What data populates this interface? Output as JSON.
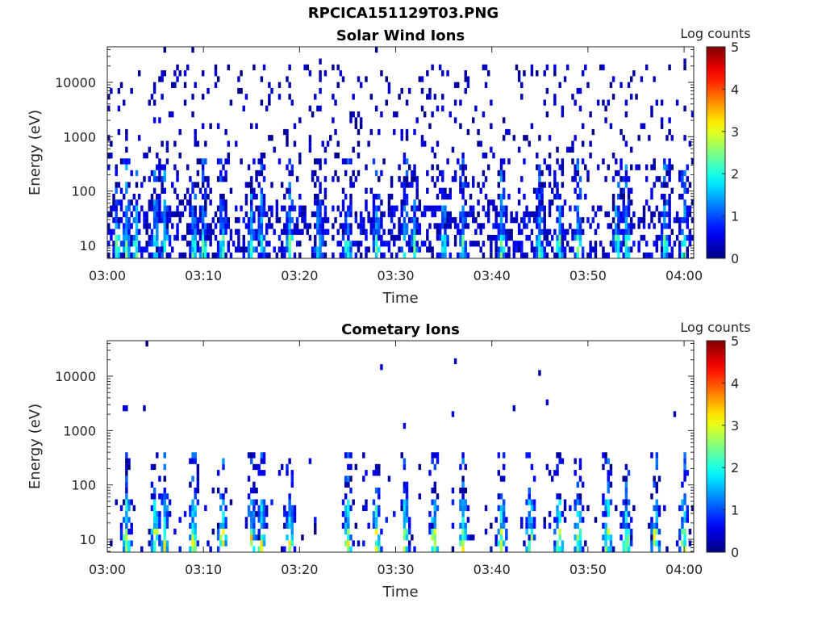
{
  "figure_title": "RPCICA151129T03.PNG",
  "chart_data": [
    {
      "type": "heatmap",
      "title": "Solar Wind Ions",
      "xlabel": "Time",
      "ylabel": "Energy (eV)",
      "x_ticks": [
        "03:00",
        "03:10",
        "03:20",
        "03:30",
        "03:40",
        "03:50",
        "04:00"
      ],
      "xlim": [
        "03:00",
        "04:01"
      ],
      "y_ticks": [
        10,
        100,
        1000,
        10000
      ],
      "y_scale": "log",
      "ylim": [
        5.8,
        45000
      ],
      "colorbar": {
        "label": "Log counts",
        "min": 0,
        "max": 5,
        "ticks": [
          0,
          1,
          2,
          3,
          4,
          5
        ]
      },
      "activity_times": [
        "03:01",
        "03:02",
        "03:03",
        "03:05",
        "03:06",
        "03:09",
        "03:10",
        "03:12",
        "03:15",
        "03:16",
        "03:19",
        "03:22",
        "03:25",
        "03:28",
        "03:31",
        "03:32",
        "03:35",
        "03:37",
        "03:41",
        "03:45",
        "03:47",
        "03:49",
        "03:53",
        "03:54",
        "03:58",
        "04:00"
      ],
      "noise_level": "dense",
      "peak_log_counts": 2.9
    },
    {
      "type": "heatmap",
      "title": "Cometary Ions",
      "xlabel": "Time",
      "ylabel": "Energy (eV)",
      "x_ticks": [
        "03:00",
        "03:10",
        "03:20",
        "03:30",
        "03:40",
        "03:50",
        "04:00"
      ],
      "xlim": [
        "03:00",
        "04:01"
      ],
      "y_ticks": [
        10,
        100,
        1000,
        10000
      ],
      "y_scale": "log",
      "ylim": [
        5.8,
        45000
      ],
      "colorbar": {
        "label": "Log counts",
        "min": 0,
        "max": 5,
        "ticks": [
          0,
          1,
          2,
          3,
          4,
          5
        ]
      },
      "activity_times": [
        "03:02",
        "03:05",
        "03:06",
        "03:09",
        "03:12",
        "03:15",
        "03:16",
        "03:19",
        "03:25",
        "03:28",
        "03:31",
        "03:34",
        "03:37",
        "03:41",
        "03:44",
        "03:47",
        "03:49",
        "03:52",
        "03:54",
        "03:57",
        "04:00"
      ],
      "noise_level": "sparse",
      "peak_log_counts": 3.8
    }
  ]
}
